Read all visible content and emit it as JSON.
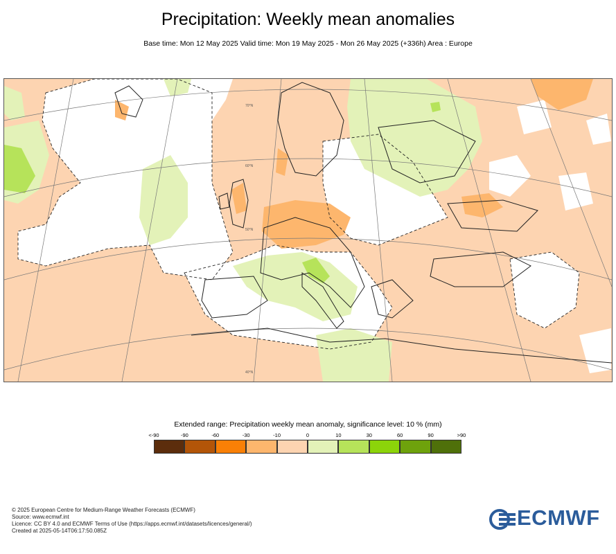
{
  "header": {
    "title": "Precipitation: Weekly mean anomalies",
    "subtitle": "Base time: Mon 12 May 2025 Valid time: Mon 19 May 2025 - Mon 26 May 2025 (+336h) Area : Europe"
  },
  "map": {
    "graticule_labels": [
      "70°N",
      "60°N",
      "50°N",
      "40°N"
    ]
  },
  "legend": {
    "title": "Extended range: Precipitation weekly mean anomaly, significance level: 10 % (mm)",
    "ticks": [
      "<-90",
      "-90",
      "-60",
      "-30",
      "-10",
      "0",
      "10",
      "30",
      "60",
      "90",
      ">90"
    ],
    "colors": [
      "#5c2d0c",
      "#b35508",
      "#f98006",
      "#fdb66d",
      "#fdd4b1",
      "#e3f2b8",
      "#b6e35a",
      "#8cd40a",
      "#6ea20c",
      "#4f700a"
    ]
  },
  "footer": {
    "lines": [
      "© 2025 European Centre for Medium-Range Weather Forecasts (ECMWF)",
      "Source: www.ecmwf.int",
      "Licence: CC BY 4.0 and ECMWF Terms of Use (https://apps.ecmwf.int/datasets/licences/general/)",
      "Created at 2025-05-14T06:17:50.085Z"
    ]
  },
  "logo": {
    "text": "ECMWF",
    "color": "#2b5c9b"
  }
}
